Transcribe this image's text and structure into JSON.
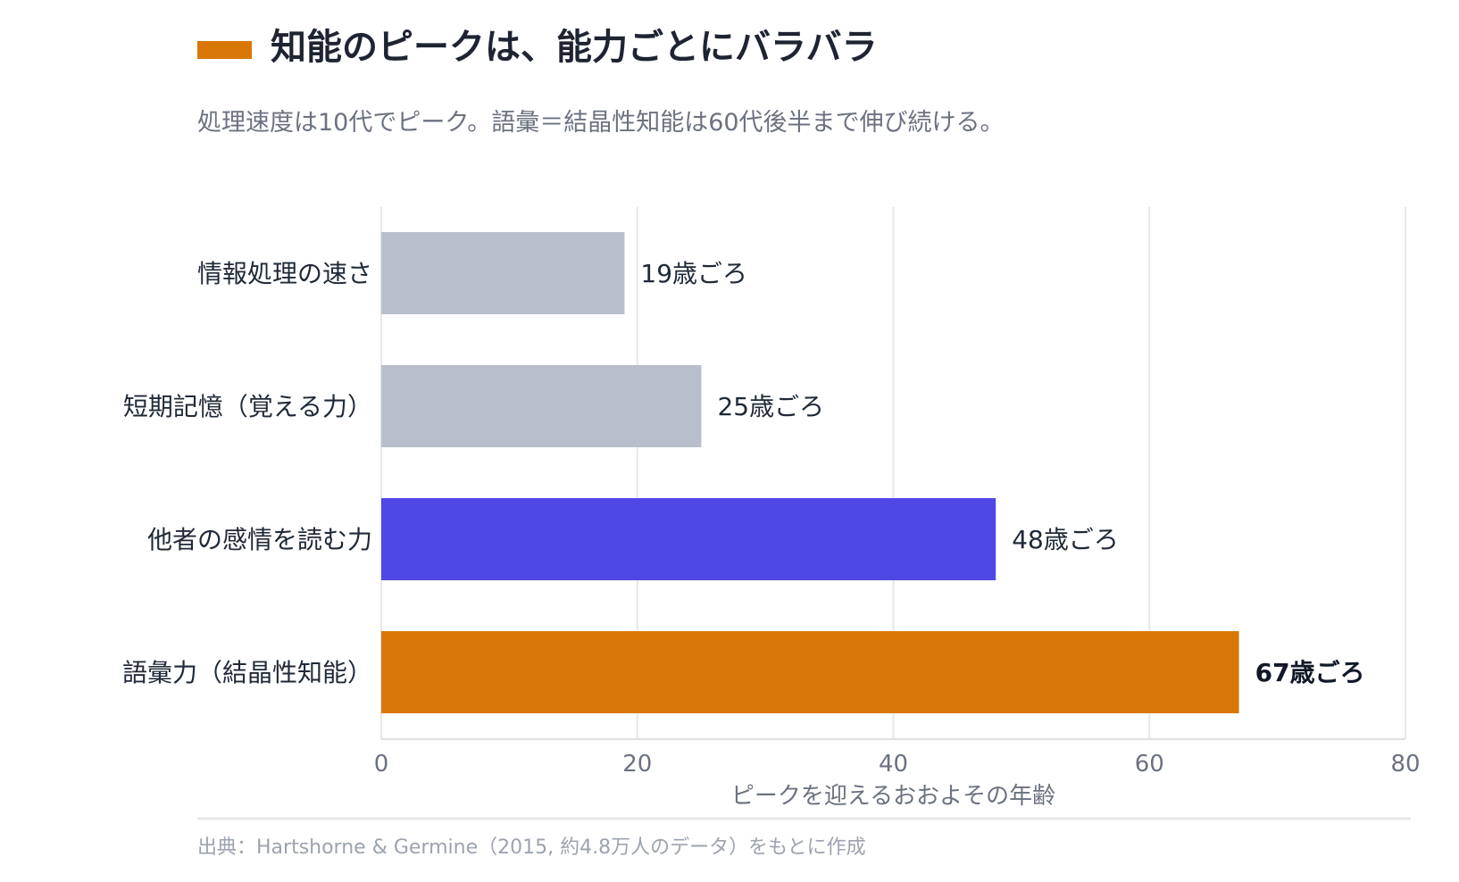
{
  "header": {
    "title": "知能のピークは、能力ごとにバラバラ",
    "subtitle": "処理速度は10代でピーク。語彙＝結晶性知能は60代後半まで伸び続ける。"
  },
  "chart_data": {
    "type": "bar",
    "orientation": "horizontal",
    "categories": [
      "情報処理の速さ",
      "短期記憶（覚える力）",
      "他者の感情を読む力",
      "語彙力（結晶性知能）"
    ],
    "values": [
      19,
      25,
      48,
      67
    ],
    "value_labels": [
      "19歳ごろ",
      "25歳ごろ",
      "48歳ごろ",
      "67歳ごろ"
    ],
    "colors": [
      "#b8bfca",
      "#b8bfca",
      "#5048e5",
      "#d97706"
    ],
    "highlight_index": 3,
    "xlabel": "ピークを迎えるおおよその年齢",
    "xlim": [
      0,
      80
    ],
    "xticks": [
      0,
      20,
      40,
      60,
      80
    ],
    "grid": true
  },
  "source": {
    "text": "出典：Hartshorne & Germine（2015, 約4.8万人のデータ）をもとに作成"
  },
  "colors": {
    "title_accent": "#d97706",
    "title_text": "#1e2431",
    "subtitle_text": "#6b7280",
    "tick_text": "#6b7280",
    "label_text": "#1f2937",
    "grid": "#e5e7eb",
    "source_text": "#9ca3af",
    "divider": "#e5e7eb"
  }
}
